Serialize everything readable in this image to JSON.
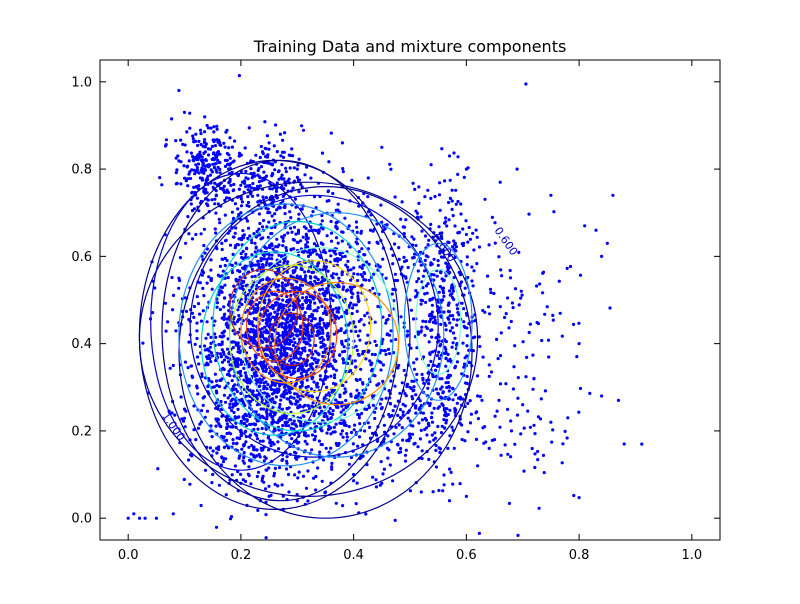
{
  "chart_data": {
    "type": "scatter",
    "title": "Training Data and mixture components",
    "xlabel": "",
    "ylabel": "",
    "xlim": [
      -0.05,
      1.05
    ],
    "ylim": [
      -0.05,
      1.05
    ],
    "xticks": [
      0.0,
      0.2,
      0.4,
      0.6,
      0.8,
      1.0
    ],
    "yticks": [
      0.0,
      0.2,
      0.4,
      0.6,
      0.8,
      1.0
    ],
    "xtick_labels": [
      "0.0",
      "0.2",
      "0.4",
      "0.6",
      "0.8",
      "1.0"
    ],
    "ytick_labels": [
      "0.0",
      "0.2",
      "0.4",
      "0.6",
      "0.8",
      "1.0"
    ],
    "grid": false,
    "legend": "none",
    "point_color": "#0000ff",
    "sampled_points": [
      [
        0.0,
        0.0
      ],
      [
        0.01,
        0.01
      ],
      [
        0.02,
        0.0
      ],
      [
        0.03,
        0.0
      ],
      [
        0.05,
        0.0
      ],
      [
        0.08,
        0.01
      ],
      [
        0.1,
        0.93
      ],
      [
        0.12,
        0.88
      ],
      [
        0.14,
        0.9
      ],
      [
        0.16,
        0.84
      ],
      [
        0.18,
        0.8
      ],
      [
        0.09,
        0.98
      ],
      [
        0.13,
        0.82
      ],
      [
        0.25,
        0.86
      ],
      [
        0.27,
        0.88
      ],
      [
        0.22,
        0.78
      ],
      [
        0.3,
        0.8
      ],
      [
        0.38,
        0.86
      ],
      [
        0.45,
        0.85
      ],
      [
        0.57,
        0.83
      ],
      [
        0.6,
        0.8
      ],
      [
        0.59,
        0.72
      ],
      [
        0.6,
        0.65
      ],
      [
        0.6,
        0.55
      ],
      [
        0.61,
        0.45
      ],
      [
        0.6,
        0.35
      ],
      [
        0.62,
        0.28
      ],
      [
        0.66,
        0.77
      ],
      [
        0.69,
        0.8
      ],
      [
        0.75,
        0.74
      ],
      [
        0.81,
        0.67
      ],
      [
        0.83,
        0.66
      ],
      [
        0.86,
        0.74
      ],
      [
        0.85,
        0.63
      ],
      [
        0.84,
        0.6
      ],
      [
        0.8,
        0.4
      ],
      [
        0.84,
        0.28
      ],
      [
        0.87,
        0.27
      ],
      [
        0.88,
        0.17
      ],
      [
        0.78,
        0.23
      ],
      [
        0.75,
        0.22
      ],
      [
        0.72,
        0.32
      ],
      [
        0.7,
        0.26
      ],
      [
        0.68,
        0.2
      ],
      [
        0.65,
        0.18
      ],
      [
        0.62,
        0.12
      ],
      [
        0.6,
        0.05
      ],
      [
        0.57,
        0.04
      ],
      [
        0.52,
        0.06
      ],
      [
        0.45,
        0.08
      ],
      [
        0.4,
        0.1
      ],
      [
        0.35,
        0.06
      ],
      [
        0.3,
        0.04
      ],
      [
        0.25,
        0.05
      ],
      [
        0.2,
        0.08
      ],
      [
        0.15,
        0.1
      ],
      [
        0.12,
        0.18
      ],
      [
        0.1,
        0.25
      ],
      [
        0.08,
        0.35
      ],
      [
        0.07,
        0.45
      ],
      [
        0.09,
        0.55
      ],
      [
        0.12,
        0.65
      ],
      [
        0.16,
        0.72
      ],
      [
        0.2,
        0.7
      ],
      [
        0.24,
        0.66
      ],
      [
        0.28,
        0.62
      ],
      [
        0.3,
        0.55
      ],
      [
        0.25,
        0.5
      ],
      [
        0.22,
        0.45
      ],
      [
        0.27,
        0.4
      ],
      [
        0.32,
        0.42
      ],
      [
        0.35,
        0.38
      ],
      [
        0.3,
        0.32
      ],
      [
        0.25,
        0.28
      ],
      [
        0.2,
        0.3
      ],
      [
        0.18,
        0.38
      ],
      [
        0.4,
        0.45
      ],
      [
        0.45,
        0.4
      ],
      [
        0.48,
        0.35
      ],
      [
        0.5,
        0.3
      ],
      [
        0.42,
        0.25
      ],
      [
        0.38,
        0.2
      ],
      [
        0.33,
        0.18
      ],
      [
        0.28,
        0.15
      ],
      [
        0.22,
        0.2
      ],
      [
        0.5,
        0.5
      ],
      [
        0.52,
        0.58
      ],
      [
        0.48,
        0.62
      ],
      [
        0.43,
        0.66
      ],
      [
        0.36,
        0.68
      ],
      [
        0.55,
        0.42
      ],
      [
        0.57,
        0.3
      ],
      [
        0.54,
        0.22
      ],
      [
        0.46,
        0.16
      ],
      [
        0.17,
        0.55
      ],
      [
        0.14,
        0.45
      ],
      [
        0.15,
        0.3
      ],
      [
        0.19,
        0.62
      ],
      [
        0.23,
        0.74
      ],
      [
        0.34,
        0.6
      ]
    ],
    "contour_labels": [
      "0.600",
      "0.600",
      "1.000"
    ],
    "contour_color_scale": [
      "#00008b",
      "#0000cd",
      "#1e90ff",
      "#00ced1",
      "#7fffd4",
      "#adff2f",
      "#ffd700",
      "#ff8c00",
      "#ff4500",
      "#b22222"
    ]
  }
}
